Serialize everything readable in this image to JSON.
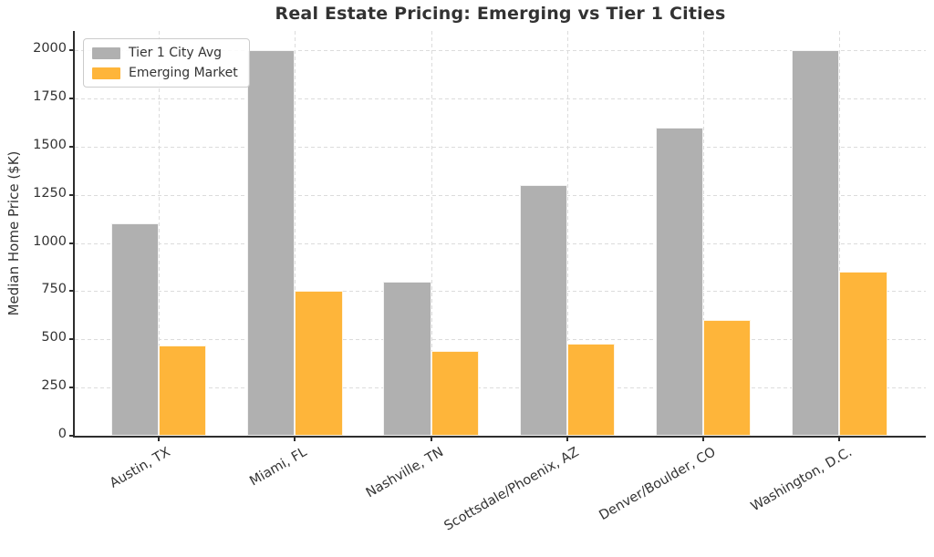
{
  "chart_data": {
    "type": "bar",
    "title": "Real Estate Pricing: Emerging vs Tier 1 Cities",
    "xlabel": "",
    "ylabel": "Median Home Price ($K)",
    "categories": [
      "Austin, TX",
      "Miami, FL",
      "Nashville, TN",
      "Scottsdale/Phoenix, AZ",
      "Denver/Boulder, CO",
      "Washington, D.C."
    ],
    "series": [
      {
        "name": "Tier 1 City Avg",
        "color": "#b0b0b0",
        "values": [
          1100,
          2000,
          800,
          1300,
          1600,
          2000
        ]
      },
      {
        "name": "Emerging Market",
        "color": "#feb53a",
        "values": [
          470,
          750,
          440,
          480,
          600,
          850
        ]
      }
    ],
    "ylim": [
      0,
      2100
    ],
    "yticks": [
      0,
      250,
      500,
      750,
      1000,
      1250,
      1500,
      1750,
      2000
    ],
    "grid": true,
    "grid_style": "dashed",
    "legend_position": "upper-left",
    "bar_width_fraction": 0.35
  },
  "colors": {
    "tier1": "#b0b0b0",
    "emerging": "#feb53a",
    "grid": "#dcdcdc",
    "axis": "#2d2d2d",
    "text": "#333333",
    "legend_border": "#cccccc",
    "background": "#ffffff"
  }
}
